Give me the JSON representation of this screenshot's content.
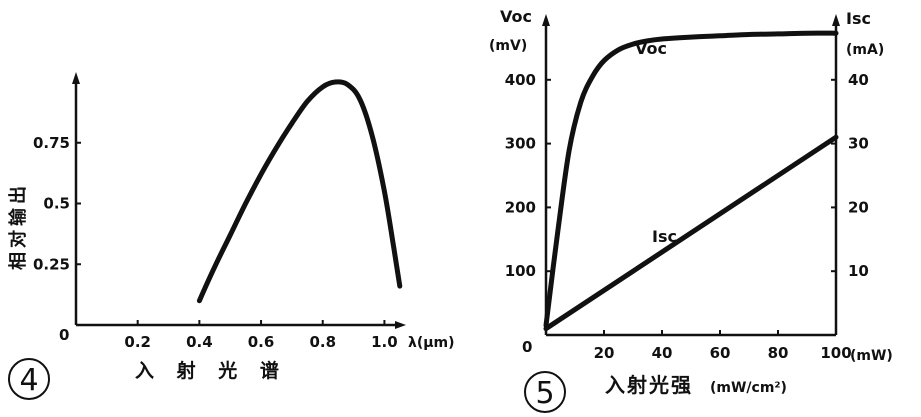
{
  "chart_data": [
    {
      "type": "line",
      "panel_number": "4",
      "title": "入 射 光 谱",
      "ylabel": "相对输出",
      "xlabel": "λ(μm)",
      "origin_label": "0",
      "x_ticks": [
        "0.2",
        "0.4",
        "0.6",
        "0.8",
        "1.0"
      ],
      "y_ticks": [
        "0.25",
        "0.5",
        "0.75"
      ],
      "xlim": [
        0,
        1.07
      ],
      "ylim": [
        0,
        1.0
      ],
      "series": [
        {
          "name": "relative output",
          "x": [
            0.4,
            0.45,
            0.5,
            0.55,
            0.6,
            0.65,
            0.7,
            0.75,
            0.8,
            0.84,
            0.88,
            0.92,
            0.96,
            1.0,
            1.03,
            1.05
          ],
          "y": [
            0.1,
            0.24,
            0.37,
            0.5,
            0.62,
            0.73,
            0.83,
            0.92,
            0.98,
            1.0,
            0.99,
            0.93,
            0.78,
            0.55,
            0.32,
            0.16
          ]
        }
      ]
    },
    {
      "type": "line",
      "panel_number": "5",
      "title": "入射光强",
      "xlabel_unit": "(mW/cm²)",
      "x_unit_label": "(mW)",
      "origin_label": "0",
      "x_ticks": [
        "20",
        "40",
        "60",
        "80",
        "100"
      ],
      "xlim": [
        0,
        100
      ],
      "left_axis": {
        "label": "Voc",
        "unit": "(mV)",
        "ticks": [
          "100",
          "200",
          "300",
          "400"
        ],
        "range": [
          0,
          500
        ]
      },
      "right_axis": {
        "label": "Isc",
        "unit": "(mA)",
        "ticks": [
          "10",
          "20",
          "30",
          "40"
        ],
        "range": [
          0,
          50
        ]
      },
      "series": [
        {
          "name": "Voc",
          "axis": "left",
          "x": [
            0,
            4,
            8,
            12,
            16,
            20,
            25,
            30,
            35,
            40,
            50,
            60,
            70,
            80,
            90,
            100
          ],
          "y": [
            15,
            160,
            290,
            365,
            405,
            430,
            447,
            456,
            461,
            464,
            467,
            469,
            471,
            472,
            473,
            473
          ]
        },
        {
          "name": "Isc",
          "axis": "right",
          "x": [
            0,
            100
          ],
          "y": [
            1,
            31
          ]
        }
      ],
      "series_labels": [
        "Voc",
        "Isc"
      ]
    }
  ]
}
